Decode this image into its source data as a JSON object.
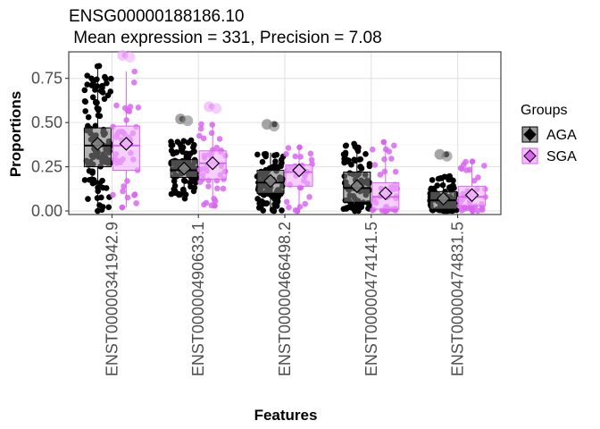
{
  "chart_data": {
    "type": "box",
    "title": "ENSG00000188186.10",
    "subtitle": " Mean expression = 331, Precision = 7.08",
    "xlabel": "Features",
    "ylabel": "Proportions",
    "ylim": [
      -0.02,
      0.9
    ],
    "yticks": [
      "0.00",
      "0.25",
      "0.50",
      "0.75"
    ],
    "ytick_values": [
      0,
      0.25,
      0.5,
      0.75
    ],
    "grid": true,
    "legend": {
      "title": "Groups",
      "position": "right",
      "entries": [
        "AGA",
        "SGA"
      ]
    },
    "categories": [
      "ENST00000341942.9",
      "ENST00000490633.1",
      "ENST00000466498.2",
      "ENST00000474141.5",
      "ENST00000474831.5"
    ],
    "series": [
      {
        "name": "AGA",
        "color": "#000000",
        "fill": "#7f7f7f",
        "boxes": [
          {
            "q1": 0.25,
            "median": 0.37,
            "q3": 0.47,
            "whisker_low": 0.0,
            "whisker_high": 0.82,
            "mean": 0.38,
            "min": 0.0,
            "max": 0.82
          },
          {
            "q1": 0.19,
            "median": 0.23,
            "q3": 0.29,
            "whisker_low": 0.09,
            "whisker_high": 0.4,
            "mean": 0.24,
            "min": 0.07,
            "max": 0.52
          },
          {
            "q1": 0.1,
            "median": 0.16,
            "q3": 0.23,
            "whisker_low": 0.0,
            "whisker_high": 0.33,
            "mean": 0.17,
            "min": 0.0,
            "max": 0.49
          },
          {
            "q1": 0.05,
            "median": 0.13,
            "q3": 0.22,
            "whisker_low": 0.0,
            "whisker_high": 0.38,
            "mean": 0.14,
            "min": 0.0,
            "max": 0.38
          },
          {
            "q1": 0.01,
            "median": 0.06,
            "q3": 0.11,
            "whisker_low": 0.0,
            "whisker_high": 0.2,
            "mean": 0.07,
            "min": 0.0,
            "max": 0.32
          }
        ]
      },
      {
        "name": "SGA",
        "color": "#d966f0",
        "fill": "#f0b0fa",
        "boxes": [
          {
            "q1": 0.23,
            "median": 0.37,
            "q3": 0.48,
            "whisker_low": 0.02,
            "whisker_high": 0.79,
            "mean": 0.38,
            "min": 0.02,
            "max": 0.88
          },
          {
            "q1": 0.18,
            "median": 0.27,
            "q3": 0.34,
            "whisker_low": 0.03,
            "whisker_high": 0.5,
            "mean": 0.27,
            "min": 0.03,
            "max": 0.59
          },
          {
            "q1": 0.14,
            "median": 0.22,
            "q3": 0.26,
            "whisker_low": 0.0,
            "whisker_high": 0.36,
            "mean": 0.23,
            "min": 0.0,
            "max": 0.36
          },
          {
            "q1": 0.01,
            "median": 0.08,
            "q3": 0.16,
            "whisker_low": 0.0,
            "whisker_high": 0.39,
            "mean": 0.1,
            "min": 0.0,
            "max": 0.39
          },
          {
            "q1": 0.03,
            "median": 0.08,
            "q3": 0.14,
            "whisker_low": 0.0,
            "whisker_high": 0.28,
            "mean": 0.09,
            "min": 0.0,
            "max": 0.28
          }
        ]
      }
    ]
  }
}
